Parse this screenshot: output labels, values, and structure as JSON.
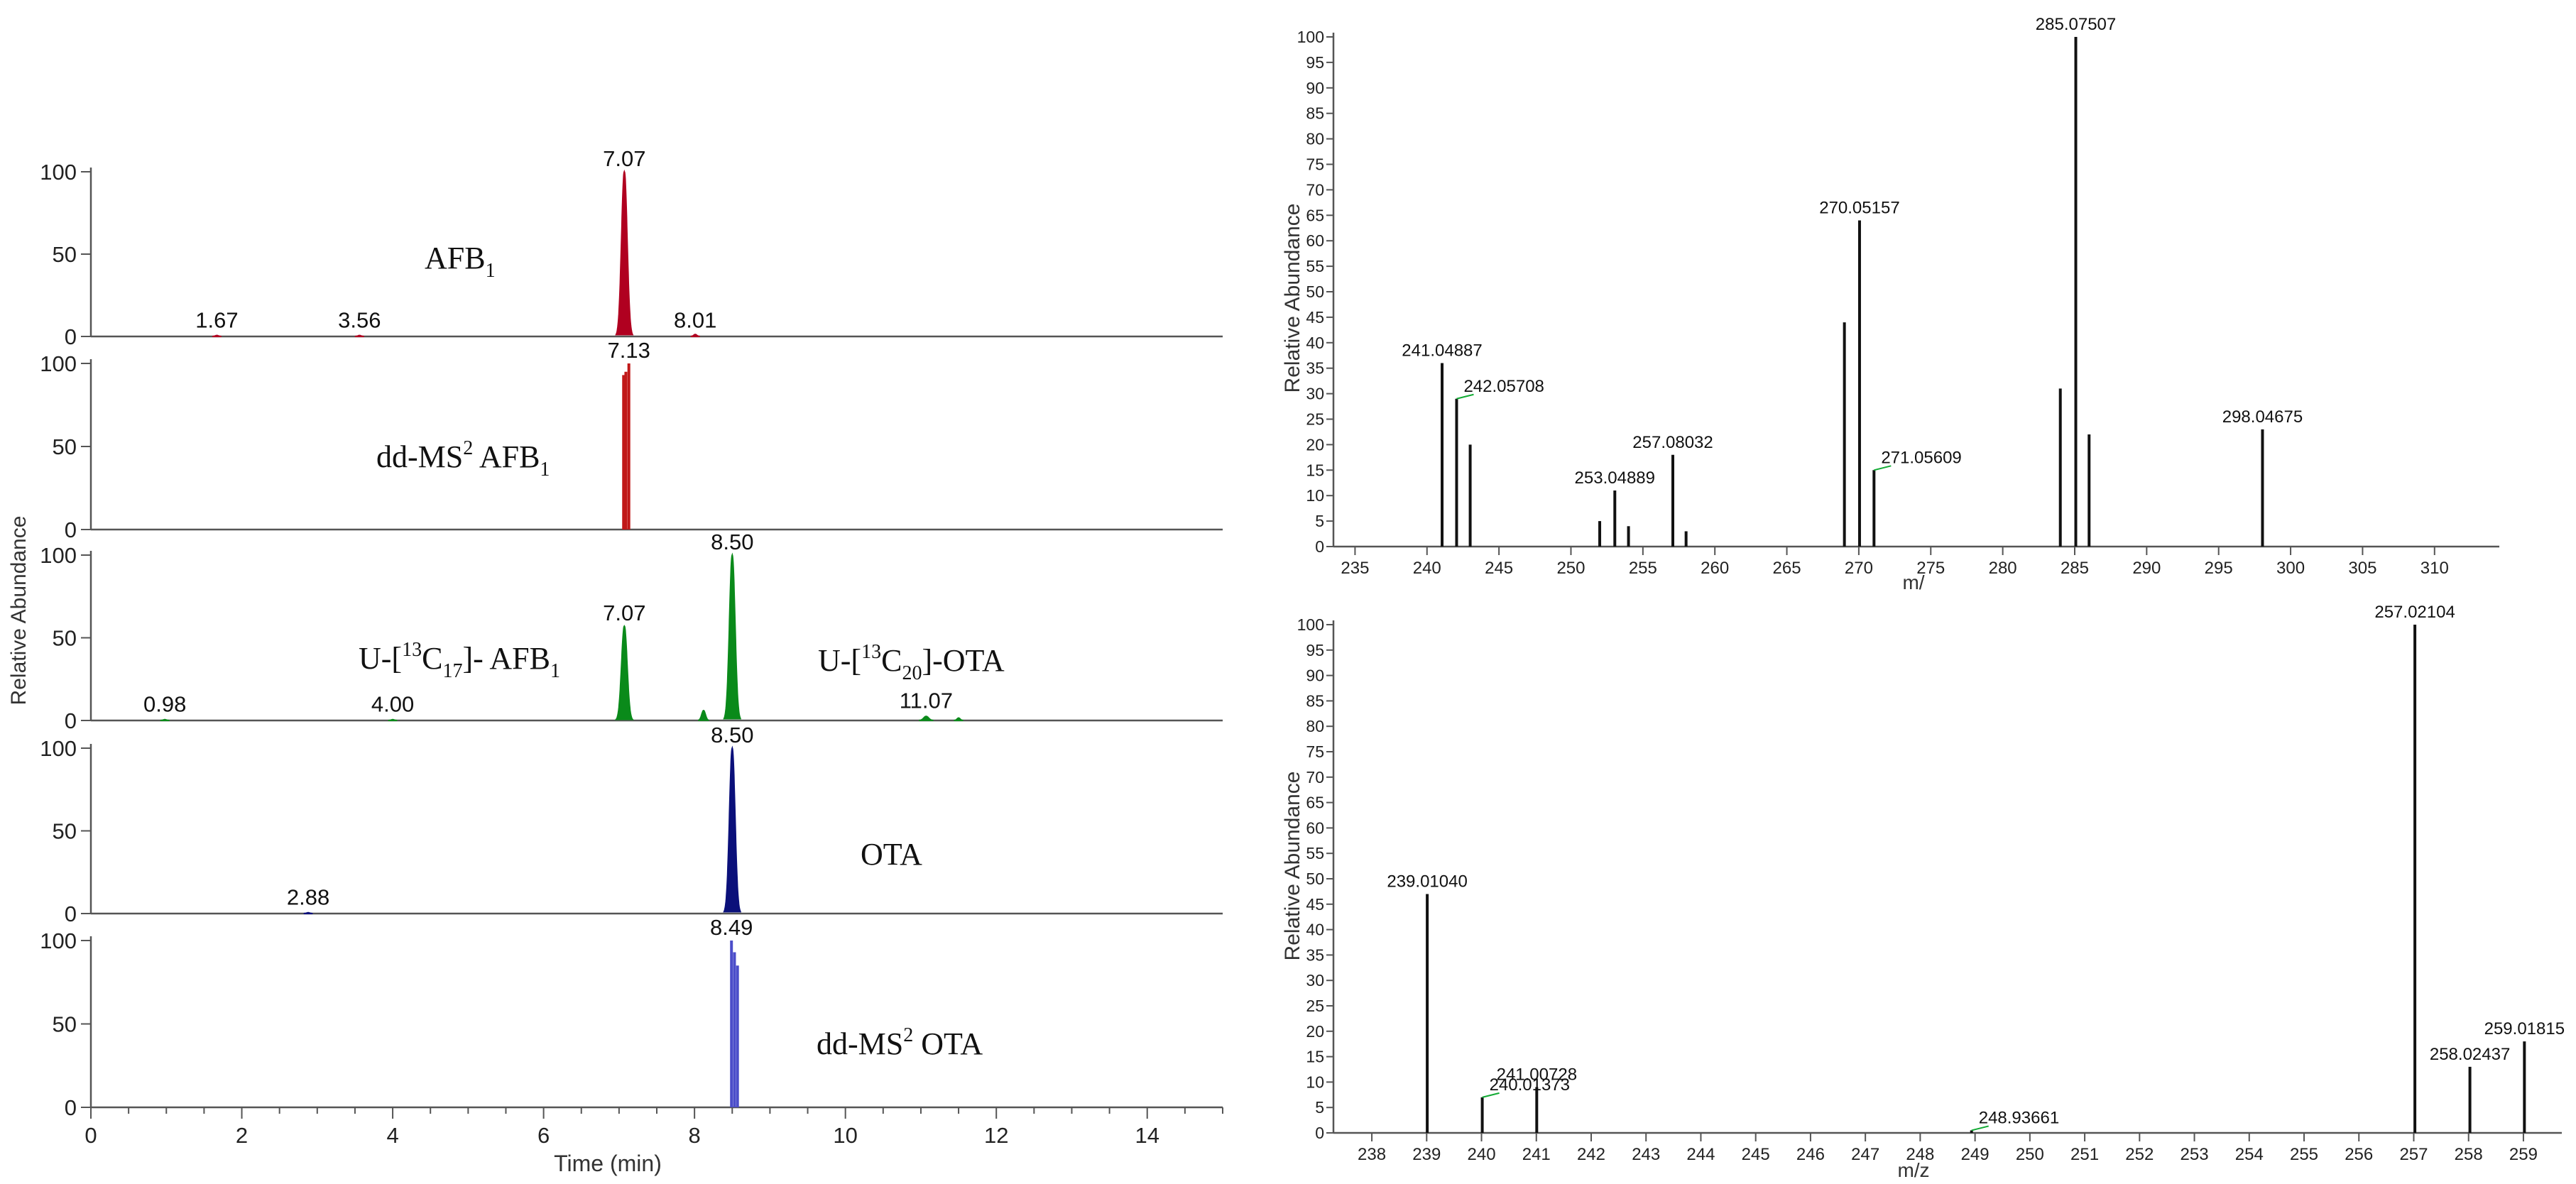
{
  "colors": {
    "afb1": "#b00020",
    "ddms2_afb1": "#c01818",
    "internal_std": "#0a8a1a",
    "ota": "#0b107a",
    "ddms2_ota": "#4b4dc9",
    "spectrum": "#111111",
    "label_tick": "#11aa33"
  },
  "chart_data": [
    {
      "type": "line",
      "title": "",
      "xlabel": "Time (min)",
      "ylabel": "Relative Abundance",
      "xlim": [
        0,
        15
      ],
      "xticks": [
        0,
        2,
        4,
        6,
        8,
        10,
        12,
        14
      ],
      "yticks": [
        0,
        50,
        100
      ],
      "series": [
        {
          "name": "AFB1",
          "label_lines": [
            "AFB",
            "1"
          ],
          "color_key": "afb1",
          "peaks": [
            {
              "rt": 7.07,
              "height": 100,
              "width": 0.09
            },
            {
              "rt": 1.67,
              "height": 0.6,
              "width": 0.05
            },
            {
              "rt": 3.56,
              "height": 0.6,
              "width": 0.05
            },
            {
              "rt": 8.01,
              "height": 1.2,
              "width": 0.05
            }
          ],
          "labels": [
            {
              "text": "7.07",
              "x": 7.07,
              "y": 100
            },
            {
              "text": "1.67",
              "x": 1.67,
              "y": 2
            },
            {
              "text": "3.56",
              "x": 3.56,
              "y": 2
            },
            {
              "text": "8.01",
              "x": 8.01,
              "y": 2
            }
          ]
        },
        {
          "name": "dd-MS2 AFB1",
          "color_key": "ddms2_afb1",
          "sticks": [
            {
              "x": 7.06,
              "y": 93
            },
            {
              "x": 7.09,
              "y": 95
            },
            {
              "x": 7.13,
              "y": 100
            }
          ],
          "labels": [
            {
              "text": "7.13",
              "x": 7.13,
              "y": 100
            }
          ]
        },
        {
          "name": "U-[13C17]-AFB1 / U-[13C20]-OTA",
          "color_key": "internal_std",
          "peaks": [
            {
              "rt": 7.07,
              "height": 57,
              "width": 0.09
            },
            {
              "rt": 8.5,
              "height": 100,
              "width": 0.09
            },
            {
              "rt": 8.12,
              "height": 6,
              "width": 0.06
            },
            {
              "rt": 11.07,
              "height": 2.5,
              "width": 0.08
            },
            {
              "rt": 11.5,
              "height": 1.5,
              "width": 0.05
            },
            {
              "rt": 0.98,
              "height": 0.5,
              "width": 0.05
            },
            {
              "rt": 4.0,
              "height": 0.5,
              "width": 0.05
            }
          ],
          "labels": [
            {
              "text": "8.50",
              "x": 8.5,
              "y": 100
            },
            {
              "text": "7.07",
              "x": 7.07,
              "y": 57
            },
            {
              "text": "0.98",
              "x": 0.98,
              "y": 2
            },
            {
              "text": "4.00",
              "x": 4.0,
              "y": 2
            },
            {
              "text": "11.07",
              "x": 11.07,
              "y": 4
            }
          ]
        },
        {
          "name": "OTA",
          "color_key": "ota",
          "peaks": [
            {
              "rt": 8.5,
              "height": 100,
              "width": 0.09
            },
            {
              "rt": 2.88,
              "height": 0.5,
              "width": 0.05
            }
          ],
          "labels": [
            {
              "text": "8.50",
              "x": 8.5,
              "y": 100
            },
            {
              "text": "2.88",
              "x": 2.88,
              "y": 2
            }
          ]
        },
        {
          "name": "dd-MS2 OTA",
          "color_key": "ddms2_ota",
          "sticks": [
            {
              "x": 8.49,
              "y": 100
            },
            {
              "x": 8.53,
              "y": 93
            },
            {
              "x": 8.57,
              "y": 85
            }
          ],
          "labels": [
            {
              "text": "8.49",
              "x": 8.49,
              "y": 100
            }
          ]
        }
      ],
      "annotations": {
        "afb1": "AFB",
        "afb1_sub": "1",
        "dd_prefix": "dd-MS",
        "dd_sup": "2",
        "dd_afb1_rest": " AFB",
        "dd_afb1_sub": "1",
        "u13c17_prefix": "U-[",
        "u13c17_sup": "13",
        "u13c17_c": "C",
        "u13c17_sub": "17",
        "u13c17_rest": "]- AFB",
        "u13c17_sub2": "1",
        "u13c20_prefix": "U-[",
        "u13c20_sup": "13",
        "u13c20_c": "C",
        "u13c20_sub": "20",
        "u13c20_rest": "]-OTA",
        "ota": "OTA",
        "dd_ota_rest": " OTA"
      }
    },
    {
      "type": "bar",
      "title": "",
      "xlabel": "m/",
      "ylabel": "Relative Abundance",
      "xlim": [
        233.5,
        314.5
      ],
      "ylim": [
        0,
        100
      ],
      "xticks": [
        235,
        240,
        245,
        250,
        255,
        260,
        265,
        270,
        275,
        280,
        285,
        290,
        295,
        300,
        305,
        310
      ],
      "yticks": [
        0,
        5,
        10,
        15,
        20,
        25,
        30,
        35,
        40,
        45,
        50,
        55,
        60,
        65,
        70,
        75,
        80,
        85,
        90,
        95,
        100
      ],
      "sticks": [
        {
          "mz": 241.04887,
          "y": 36
        },
        {
          "mz": 242.05708,
          "y": 29
        },
        {
          "mz": 243.0,
          "y": 20
        },
        {
          "mz": 252.0,
          "y": 5
        },
        {
          "mz": 253.04889,
          "y": 11
        },
        {
          "mz": 254.0,
          "y": 4
        },
        {
          "mz": 257.08032,
          "y": 18
        },
        {
          "mz": 258.0,
          "y": 3
        },
        {
          "mz": 269.0,
          "y": 44
        },
        {
          "mz": 270.05157,
          "y": 64
        },
        {
          "mz": 271.05609,
          "y": 15
        },
        {
          "mz": 284.0,
          "y": 31
        },
        {
          "mz": 285.07507,
          "y": 100
        },
        {
          "mz": 286.0,
          "y": 22
        },
        {
          "mz": 298.04675,
          "y": 23
        }
      ],
      "labels": [
        {
          "text": "241.04887",
          "x": 241.04887,
          "y": 36
        },
        {
          "text": "242.05708",
          "x": 242.05708,
          "y": 29
        },
        {
          "text": "253.04889",
          "x": 253.04889,
          "y": 11
        },
        {
          "text": "257.08032",
          "x": 257.08032,
          "y": 18
        },
        {
          "text": "270.05157",
          "x": 270.05157,
          "y": 64
        },
        {
          "text": "271.05609",
          "x": 271.05609,
          "y": 15
        },
        {
          "text": "285.07507",
          "x": 285.07507,
          "y": 100
        },
        {
          "text": "298.04675",
          "x": 298.04675,
          "y": 23
        }
      ]
    },
    {
      "type": "bar",
      "title": "",
      "xlabel": "m/z",
      "ylabel": "Relative Abundance",
      "xlim": [
        237.3,
        259.7
      ],
      "ylim": [
        0,
        100
      ],
      "xticks": [
        238,
        239,
        240,
        241,
        242,
        243,
        244,
        245,
        246,
        247,
        248,
        249,
        250,
        251,
        252,
        253,
        254,
        255,
        256,
        257,
        258,
        259
      ],
      "yticks": [
        0,
        5,
        10,
        15,
        20,
        25,
        30,
        35,
        40,
        45,
        50,
        55,
        60,
        65,
        70,
        75,
        80,
        85,
        90,
        95,
        100
      ],
      "sticks": [
        {
          "mz": 239.0104,
          "y": 47
        },
        {
          "mz": 240.01373,
          "y": 7
        },
        {
          "mz": 241.00728,
          "y": 9
        },
        {
          "mz": 248.93661,
          "y": 0.5
        },
        {
          "mz": 257.02104,
          "y": 100
        },
        {
          "mz": 258.02437,
          "y": 13
        },
        {
          "mz": 259.01815,
          "y": 18
        }
      ],
      "labels": [
        {
          "text": "239.01040",
          "x": 239.0104,
          "y": 47
        },
        {
          "text": "240.01373",
          "x": 240.01373,
          "y": 7
        },
        {
          "text": "241.00728",
          "x": 241.00728,
          "y": 9
        },
        {
          "text": "248.93661",
          "x": 248.93661,
          "y": 0.5
        },
        {
          "text": "257.02104",
          "x": 257.02104,
          "y": 100
        },
        {
          "text": "258.02437",
          "x": 258.02437,
          "y": 13
        },
        {
          "text": "259.01815",
          "x": 259.01815,
          "y": 18
        }
      ]
    }
  ]
}
